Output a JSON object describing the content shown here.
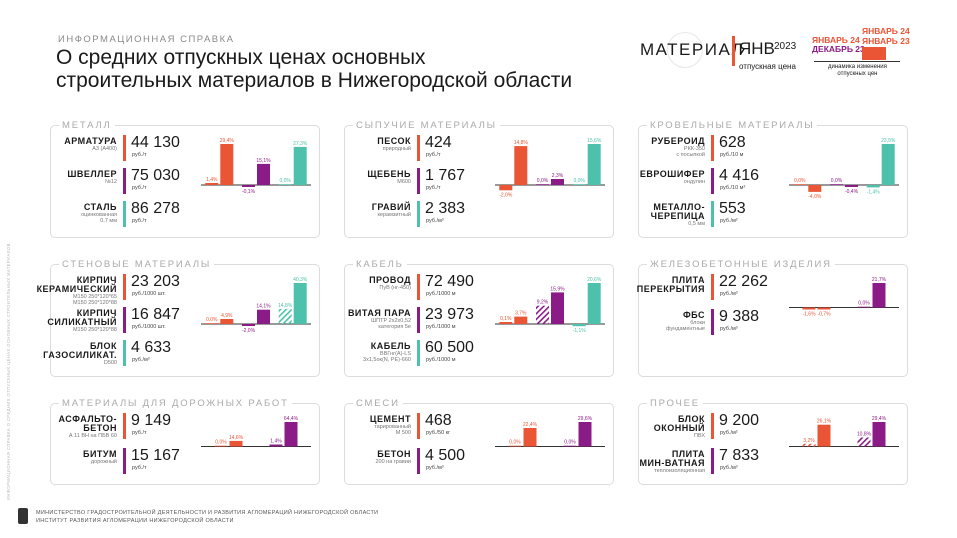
{
  "side_text": "ИНФОРМАЦИОННАЯ СПРАВКА О СРЕДНИХ ОТПУСКНЫХ ЦЕНАХ ОСНОВНЫХ СТРОИТЕЛЬНЫХ МАТЕРИАЛОВ",
  "subtitle": "ИНФОРМАЦИОННАЯ СПРАВКА",
  "title_line1": "О средних отпускных ценах основных",
  "title_line2": "строительных материалов в Нижегородской области",
  "legend": {
    "material": "МАТЕРИАЛ",
    "jan": "ЯНВ",
    "year": "2023",
    "price_label": "отпускная цена",
    "jan24": "ЯНВАРЬ 24",
    "jan24_b": "ЯНВАРЬ 24",
    "jan23": "ЯНВАРЬ 23",
    "dec23": "ДЕКАБРЬ 23",
    "dynamics_l1": "динамика изменения",
    "dynamics_l2": "отпускных цен"
  },
  "colors": {
    "red": "#ea5536",
    "purple": "#8b1b86",
    "teal": "#4dc1ab"
  },
  "cards": [
    {
      "title": "МЕТАЛЛ",
      "items": [
        {
          "name": "АРМАТУРА",
          "grade": "А3 (А400)",
          "value": "44 130",
          "unit": "руб./т",
          "color": "red"
        },
        {
          "name": "ШВЕЛЛЕР",
          "grade": "№12",
          "value": "75 030",
          "unit": "руб./т",
          "color": "purple"
        },
        {
          "name": "СТАЛЬ",
          "grade": "оцинкованная",
          "grade2": "0,7 мм",
          "value": "86 278",
          "unit": "руб./т",
          "color": "teal"
        }
      ],
      "chart_data": {
        "type": "bar",
        "bars": [
          {
            "label": "1,4%",
            "value": 1.4,
            "color": "red"
          },
          {
            "label": "29,4%",
            "value": 29.4,
            "color": "red"
          },
          {
            "label": "-0,1%",
            "value": -0.1,
            "color": "purple"
          },
          {
            "label": "15,1%",
            "value": 15.1,
            "color": "purple"
          },
          {
            "label": "0,0%",
            "value": 0.0,
            "color": "teal"
          },
          {
            "label": "27,3%",
            "value": 27.3,
            "color": "teal"
          }
        ]
      }
    },
    {
      "title": "СЫПУЧИЕ МАТЕРИАЛЫ",
      "items": [
        {
          "name": "ПЕСОК",
          "grade": "природный",
          "value": "424",
          "unit": "руб./т",
          "color": "red"
        },
        {
          "name": "ЩЕБЕНЬ",
          "grade": "М600",
          "value": "1 767",
          "unit": "руб./т",
          "color": "purple"
        },
        {
          "name": "ГРАВИЙ",
          "grade": "керамзитный",
          "value": "2 383",
          "unit": "руб./м³",
          "color": "teal"
        }
      ],
      "chart_data": {
        "type": "bar",
        "bars": [
          {
            "label": "-2,0%",
            "value": -2.0,
            "color": "red"
          },
          {
            "label": "14,8%",
            "value": 14.8,
            "color": "red"
          },
          {
            "label": "0,0%",
            "value": 0.0,
            "color": "purple"
          },
          {
            "label": "2,3%",
            "value": 2.3,
            "color": "purple"
          },
          {
            "label": "0,0%",
            "value": 0.0,
            "color": "teal"
          },
          {
            "label": "15,6%",
            "value": 15.6,
            "color": "teal"
          }
        ]
      }
    },
    {
      "title": "КРОВЕЛЬНЫЕ МАТЕРИАЛЫ",
      "items": [
        {
          "name": "РУБЕРОИД",
          "grade": "РКК-350",
          "grade2": "с посыпкой",
          "value": "628",
          "unit": "руб./10 м",
          "color": "red"
        },
        {
          "name": "ЕВРОШИФЕР",
          "grade": "ондулин",
          "value": "4 416",
          "unit": "руб./10 м²",
          "color": "purple"
        },
        {
          "name": "МЕТАЛЛО-",
          "name2": "ЧЕРЕПИЦА",
          "grade": "0,5 мм",
          "value": "553",
          "unit": "руб./м²",
          "color": "teal"
        }
      ],
      "chart_data": {
        "type": "bar",
        "bars": [
          {
            "label": "0,0%",
            "value": 0.0,
            "color": "red"
          },
          {
            "label": "-4,0%",
            "value": -4.0,
            "color": "red"
          },
          {
            "label": "0,0%",
            "value": 0.0,
            "color": "purple"
          },
          {
            "label": "-0,4%",
            "value": -0.4,
            "color": "purple"
          },
          {
            "label": "-1,4%",
            "value": -1.4,
            "color": "teal"
          },
          {
            "label": "23,9%",
            "value": 23.9,
            "color": "teal"
          }
        ]
      }
    },
    {
      "title": "СТЕНОВЫЕ МАТЕРИАЛЫ",
      "items": [
        {
          "name": "КИРПИЧ",
          "name2": "КЕРАМИЧЕСКИЙ",
          "grade": "М150 250*120*65",
          "grade2": "М150 250*120*88",
          "value": "23 203",
          "unit": "руб./1000 шт.",
          "color": "red"
        },
        {
          "name": "КИРПИЧ",
          "name2": "СИЛИКАТНЫЙ",
          "grade": "М150 250*120*88",
          "value": "16 847",
          "unit": "руб./1000 шт.",
          "color": "purple"
        },
        {
          "name": "БЛОК",
          "name2": "ГАЗОСИЛИКАТ.",
          "grade": "D500",
          "value": "4 633",
          "unit": "руб./м³",
          "color": "teal"
        }
      ],
      "chart_data": {
        "type": "bar",
        "bars": [
          {
            "label": "0,0%",
            "value": 0.0,
            "color": "red"
          },
          {
            "label": "4,9%",
            "value": 4.9,
            "color": "red"
          },
          {
            "label": "-2,0%",
            "value": -2.0,
            "color": "purple"
          },
          {
            "label": "14,1%",
            "value": 14.1,
            "color": "purple"
          },
          {
            "label": "14,8%",
            "value": 14.8,
            "color": "teal",
            "hatch": true
          },
          {
            "label": "40,3%",
            "value": 40.3,
            "color": "teal"
          }
        ]
      }
    },
    {
      "title": "КАБЕЛЬ",
      "items": [
        {
          "name": "ПРОВОД",
          "grade": "ПуВ (нг-450)",
          "value": "72 490",
          "unit": "руб./1000 м",
          "color": "red"
        },
        {
          "name": "ВИТАЯ ПАРА",
          "grade": "ШПТР 2х2х0,52",
          "grade2": "категория 5е",
          "value": "23 973",
          "unit": "руб./1000 м",
          "color": "purple"
        },
        {
          "name": "КАБЕЛЬ",
          "grade": "ВВГнг(А)-LS",
          "grade2": "3х1,5ок(N, PE)-660",
          "value": "60 500",
          "unit": "руб./1000 м",
          "color": "teal"
        }
      ],
      "chart_data": {
        "type": "bar",
        "bars": [
          {
            "label": "0,1%",
            "value": 0.1,
            "color": "red"
          },
          {
            "label": "3,7%",
            "value": 3.7,
            "color": "red"
          },
          {
            "label": "9,2%",
            "value": 9.2,
            "color": "purple",
            "hatch": true
          },
          {
            "label": "15,9%",
            "value": 15.9,
            "color": "purple"
          },
          {
            "label": "-1,1%",
            "value": -1.1,
            "color": "teal"
          },
          {
            "label": "20,6%",
            "value": 20.6,
            "color": "teal"
          }
        ]
      }
    },
    {
      "title": "ЖЕЛЕЗОБЕТОННЫЕ ИЗДЕЛИЯ",
      "items": [
        {
          "name": "ПЛИТА",
          "name2": "ПЕРЕКРЫТИЯ",
          "grade": "",
          "value": "22 262",
          "unit": "руб./м³",
          "color": "red"
        },
        {
          "name": "ФБС",
          "grade": "блоки",
          "grade2": "фундаментные",
          "value": "9 388",
          "unit": "руб./м³",
          "color": "purple"
        }
      ],
      "chart_data": {
        "type": "bar",
        "bars": [
          {
            "label": "-1,6%",
            "value": -1.6,
            "color": "red"
          },
          {
            "label": "-0,7%",
            "value": -0.7,
            "color": "red"
          },
          {
            "label": "0,0%",
            "value": 0.0,
            "color": "purple"
          },
          {
            "label": "21,7%",
            "value": 21.7,
            "color": "purple"
          }
        ]
      }
    },
    {
      "title": "МАТЕРИАЛЫ ДЛЯ ДОРОЖНЫХ РАБОТ",
      "items": [
        {
          "name": "АСФАЛЬТО-",
          "name2": "БЕТОН",
          "grade": "А 11 ВН на ПБВ 60",
          "value": "9 149",
          "unit": "руб./т",
          "color": "red"
        },
        {
          "name": "БИТУМ",
          "grade": "дорожный",
          "value": "15 167",
          "unit": "руб./т",
          "color": "purple"
        }
      ],
      "chart_data": {
        "type": "bar",
        "bars": [
          {
            "label": "0,0%",
            "value": 0.0,
            "color": "red"
          },
          {
            "label": "14,6%",
            "value": 14.6,
            "color": "red"
          },
          {
            "label": "1,4%",
            "value": 1.4,
            "color": "purple"
          },
          {
            "label": "64,4%",
            "value": 64.4,
            "color": "purple"
          }
        ]
      }
    },
    {
      "title": "СМЕСИ",
      "items": [
        {
          "name": "ЦЕМЕНТ",
          "grade": "тарированный",
          "grade2": "М 500",
          "value": "468",
          "unit": "руб./50 кг",
          "color": "red"
        },
        {
          "name": "БЕТОН",
          "grade": "200 на гравии",
          "value": "4 500",
          "unit": "руб./м³",
          "color": "purple"
        }
      ],
      "chart_data": {
        "type": "bar",
        "bars": [
          {
            "label": "0,0%",
            "value": 0.0,
            "color": "red"
          },
          {
            "label": "22,4%",
            "value": 22.4,
            "color": "red"
          },
          {
            "label": "0,0%",
            "value": 0.0,
            "color": "purple"
          },
          {
            "label": "29,6%",
            "value": 29.6,
            "color": "purple"
          }
        ]
      }
    },
    {
      "title": "ПРОЧЕЕ",
      "items": [
        {
          "name": "БЛОК",
          "name2": "ОКОННЫЙ",
          "grade": "ПВХ",
          "value": "9 200",
          "unit": "руб./м²",
          "color": "red"
        },
        {
          "name": "ПЛИТА",
          "name2": "МИН-ВАТНАЯ",
          "grade": "теплоизоляционная",
          "value": "7 833",
          "unit": "руб./м³",
          "color": "purple"
        }
      ],
      "chart_data": {
        "type": "bar",
        "bars": [
          {
            "label": "3,2%",
            "value": 3.2,
            "color": "red",
            "hatch": true
          },
          {
            "label": "26,1%",
            "value": 26.1,
            "color": "red"
          },
          {
            "label": "10,8%",
            "value": 10.8,
            "color": "purple",
            "hatch": true
          },
          {
            "label": "29,4%",
            "value": 29.4,
            "color": "purple"
          }
        ]
      }
    }
  ],
  "footer": {
    "line1": "МИНИСТЕРСТВО ГРАДОСТРОИТЕЛЬНОЙ ДЕЯТЕЛЬНОСТИ И РАЗВИТИЯ АГЛОМЕРАЦИЙ НИЖЕГОРОДСКОЙ ОБЛАСТИ",
    "line2": "ИНСТИТУТ РАЗВИТИЯ АГЛОМЕРАЦИИ НИЖЕГОРОДСКОЙ ОБЛАСТИ"
  }
}
